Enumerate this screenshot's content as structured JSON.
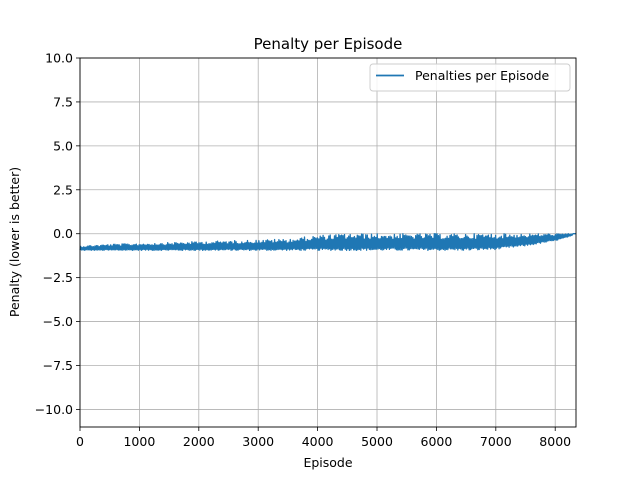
{
  "chart_data": {
    "type": "line",
    "title": "Penalty per Episode",
    "xlabel": "Episode",
    "ylabel": "Penalty (lower is better)",
    "xlim": [
      0,
      8350
    ],
    "ylim": [
      -11,
      10
    ],
    "xticks": [
      0,
      1000,
      2000,
      3000,
      4000,
      5000,
      6000,
      7000,
      8000
    ],
    "xtick_labels": [
      "0",
      "1000",
      "2000",
      "3000",
      "4000",
      "5000",
      "6000",
      "7000",
      "8000"
    ],
    "yticks": [
      10,
      7.5,
      5,
      2.5,
      0,
      -2.5,
      -5,
      -7.5,
      -10
    ],
    "ytick_labels": [
      "10.0",
      "7.5",
      "5.0",
      "2.5",
      "0.0",
      "−2.5",
      "−5.0",
      "−7.5",
      "−10.0"
    ],
    "grid": true,
    "legend_position": "top-right",
    "series": [
      {
        "name": "Penalties per Episode",
        "color": "#1f77b4",
        "band": {
          "x": [
            0,
            500,
            1000,
            1500,
            2000,
            2500,
            3000,
            3500,
            4000,
            4500,
            5000,
            5500,
            6000,
            6500,
            7000,
            7500,
            8000,
            8300
          ],
          "lower": [
            -0.95,
            -0.95,
            -0.95,
            -0.95,
            -0.95,
            -0.95,
            -0.95,
            -0.95,
            -0.95,
            -0.95,
            -0.95,
            -0.95,
            -0.95,
            -0.95,
            -0.9,
            -0.7,
            -0.4,
            -0.1
          ],
          "upper": [
            -0.7,
            -0.6,
            -0.55,
            -0.5,
            -0.45,
            -0.4,
            -0.35,
            -0.3,
            -0.1,
            0.0,
            0.0,
            0.0,
            0.0,
            0.0,
            0.0,
            0.0,
            0.0,
            0.0
          ]
        }
      }
    ]
  }
}
